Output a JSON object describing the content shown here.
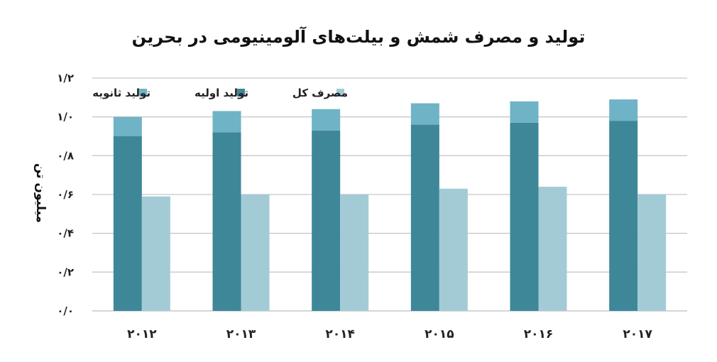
{
  "chart_data": {
    "type": "bar",
    "title": "تولید و مصرف شمش و بیلت‌های آلومینیومی در بحرین",
    "ylabel": "میلیون تن",
    "xlabel": "",
    "ylim": [
      0,
      1.2
    ],
    "y_tick_values": [
      0,
      0.2,
      0.4,
      0.6,
      0.8,
      1.0,
      1.2
    ],
    "y_tick_labels": [
      "۰/۰",
      "۰/۲",
      "۰/۴",
      "۰/۶",
      "۰/۸",
      "۱/۰",
      "۱/۲"
    ],
    "categories": [
      "۲۰۱۲",
      "۲۰۱۳",
      "۲۰۱۴",
      "۲۰۱۵",
      "۲۰۱۶",
      "۲۰۱۷"
    ],
    "stacked_group": [
      "تولید اولیه",
      "تولید ثانویه"
    ],
    "series": [
      {
        "name": "تولید اولیه",
        "values": [
          0.9,
          0.92,
          0.93,
          0.96,
          0.97,
          0.98
        ],
        "color": "#3e8799"
      },
      {
        "name": "تولید ثانویه",
        "values": [
          0.1,
          0.11,
          0.11,
          0.11,
          0.11,
          0.11
        ],
        "color": "#6fb3c6"
      },
      {
        "name": "مصرف کل",
        "values": [
          0.59,
          0.6,
          0.6,
          0.63,
          0.64,
          0.6
        ],
        "color": "#a3cbd6"
      }
    ],
    "legend": [
      {
        "label": "تولید ثانویه",
        "color": "#6fb3c6"
      },
      {
        "label": "تولید اولیه",
        "color": "#3e8799"
      },
      {
        "label": "مصرف کل",
        "color": "#a3cbd6"
      }
    ],
    "legend_position": "top",
    "grid": true,
    "colors": {
      "grid": "#c8c8c8",
      "axis": "#bdbdbd"
    }
  }
}
